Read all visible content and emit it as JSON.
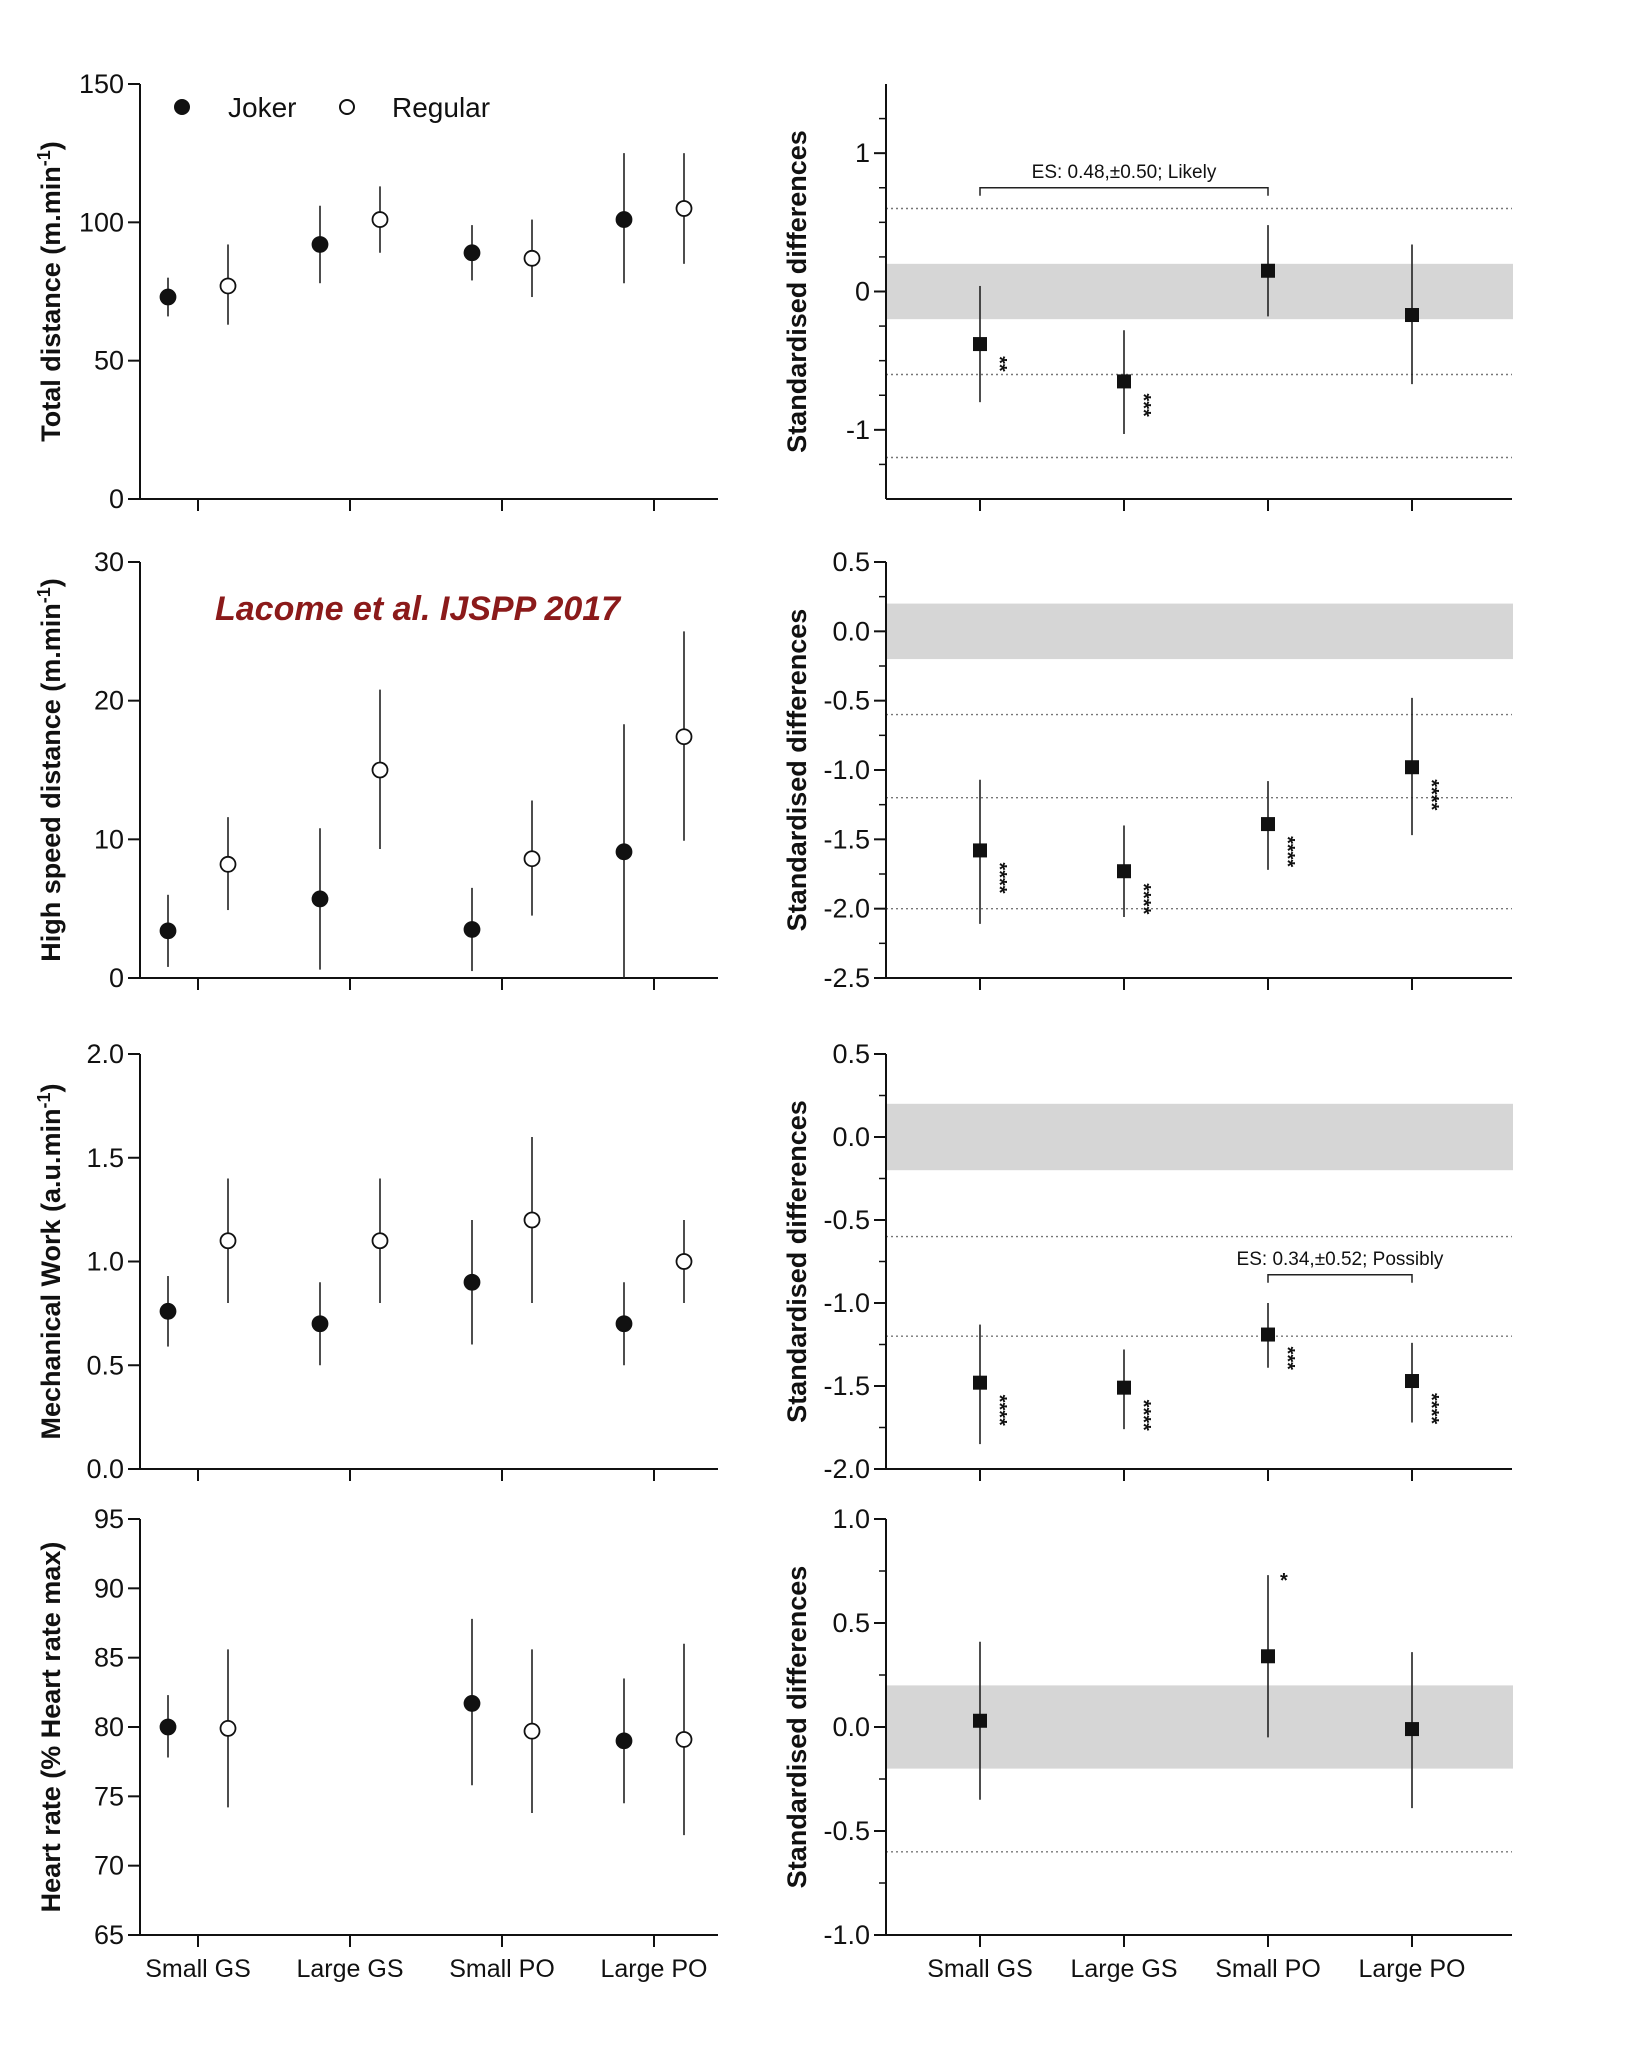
{
  "figure_note": "Lacome et al. IJSPP 2017",
  "legend": {
    "joker": "Joker",
    "regular": "Regular"
  },
  "colors": {
    "joker_marker": "#111111",
    "regular_marker": "#ffffff",
    "trivial_band": "#d6d6d6",
    "note_text": "#8b1a1a"
  },
  "categories": [
    "Small GS",
    "Large GS",
    "Small PO",
    "Large PO"
  ],
  "chart_data": [
    {
      "type": "scatter",
      "panel": "left",
      "ylabel_main": "Total distance (m.min",
      "ylabel_sup": "-1",
      "ylabel_end": ")",
      "ylim": [
        0,
        150
      ],
      "yticks": [
        0,
        50,
        100,
        150
      ],
      "yminor": [],
      "show_cat_labels": false,
      "series": [
        {
          "name": "Joker",
          "filled": true,
          "values": [
            73,
            92,
            89,
            101
          ],
          "low": [
            66,
            78,
            79,
            78
          ],
          "high": [
            80,
            106,
            99,
            125
          ]
        },
        {
          "name": "Regular",
          "filled": false,
          "values": [
            77,
            101,
            87,
            105
          ],
          "low": [
            63,
            89,
            73,
            85
          ],
          "high": [
            92,
            113,
            101,
            125
          ]
        }
      ]
    },
    {
      "type": "scatter",
      "panel": "right",
      "ylabel_main": "Standardised differences",
      "ylim": [
        -1.5,
        1.5
      ],
      "yticks": [
        -1,
        0,
        1
      ],
      "ytick_labels": [
        "-1",
        "0",
        "1"
      ],
      "yminor": [
        -1.25,
        -0.75,
        -0.5,
        -0.25,
        0.25,
        0.5,
        0.75,
        1.25
      ],
      "trivial_band": [
        -0.2,
        0.2
      ],
      "ref_lines": [
        0.6,
        -0.6,
        -1.2
      ],
      "show_cat_labels": false,
      "series": [
        {
          "values": [
            -0.38,
            -0.65,
            0.15,
            -0.17
          ],
          "low": [
            -0.8,
            -1.03,
            -0.18,
            -0.67
          ],
          "high": [
            0.04,
            -0.28,
            0.48,
            0.34
          ],
          "sig": [
            "**",
            "***",
            "",
            ""
          ]
        }
      ],
      "annotation": {
        "text": "ES: 0.48,±0.50; Likely",
        "from": 0,
        "to": 2,
        "y": 0.75
      }
    },
    {
      "type": "scatter",
      "panel": "left",
      "ylabel_main": "High speed distance (m.min",
      "ylabel_sup": "-1",
      "ylabel_end": ")",
      "ylim": [
        0,
        30
      ],
      "yticks": [
        0,
        10,
        20,
        30
      ],
      "yminor": [],
      "show_cat_labels": false,
      "series": [
        {
          "name": "Joker",
          "filled": true,
          "values": [
            3.4,
            5.7,
            3.5,
            9.1
          ],
          "low": [
            0.8,
            0.6,
            0.5,
            0
          ],
          "high": [
            6,
            10.8,
            6.5,
            18.3
          ]
        },
        {
          "name": "Regular",
          "filled": false,
          "values": [
            8.2,
            15,
            8.6,
            17.4
          ],
          "low": [
            4.9,
            9.3,
            4.5,
            9.9
          ],
          "high": [
            11.6,
            20.8,
            12.8,
            25
          ]
        }
      ]
    },
    {
      "type": "scatter",
      "panel": "right",
      "ylabel_main": "Standardised differences",
      "ylim": [
        -2.5,
        0.5
      ],
      "yticks": [
        -2.5,
        -2,
        -1.5,
        -1,
        -0.5,
        0,
        0.5
      ],
      "ytick_labels": [
        "-2.5",
        "-2.0",
        "-1.5",
        "-1.0",
        "-0.5",
        "0.0",
        "0.5"
      ],
      "yminor": [
        -2.25,
        -1.75,
        -1.25,
        -0.75,
        -0.25,
        0.25
      ],
      "trivial_band": [
        -0.2,
        0.2
      ],
      "ref_lines": [
        -0.6,
        -1.2,
        -2.0
      ],
      "show_cat_labels": false,
      "series": [
        {
          "values": [
            -1.58,
            -1.73,
            -1.39,
            -0.98
          ],
          "low": [
            -2.11,
            -2.06,
            -1.72,
            -1.47
          ],
          "high": [
            -1.07,
            -1.4,
            -1.08,
            -0.48
          ],
          "sig": [
            "****",
            "****",
            "****",
            "****"
          ]
        }
      ]
    },
    {
      "type": "scatter",
      "panel": "left",
      "ylabel_main": "Mechanical Work (a.u.min",
      "ylabel_sup": "-1",
      "ylabel_end": ")",
      "ylim": [
        0,
        2
      ],
      "yticks": [
        0,
        0.5,
        1,
        1.5,
        2
      ],
      "ytick_labels": [
        "0.0",
        "0.5",
        "1.0",
        "1.5",
        "2.0"
      ],
      "yminor": [],
      "show_cat_labels": false,
      "series": [
        {
          "name": "Joker",
          "filled": true,
          "values": [
            0.76,
            0.7,
            0.9,
            0.7
          ],
          "low": [
            0.59,
            0.5,
            0.6,
            0.5
          ],
          "high": [
            0.93,
            0.9,
            1.2,
            0.9
          ]
        },
        {
          "name": "Regular",
          "filled": false,
          "values": [
            1.1,
            1.1,
            1.2,
            1.0
          ],
          "low": [
            0.8,
            0.8,
            0.8,
            0.8
          ],
          "high": [
            1.4,
            1.4,
            1.6,
            1.2
          ]
        }
      ]
    },
    {
      "type": "scatter",
      "panel": "right",
      "ylabel_main": "Standardised differences",
      "ylim": [
        -2,
        0.5
      ],
      "yticks": [
        -2,
        -1.5,
        -1,
        -0.5,
        0,
        0.5
      ],
      "ytick_labels": [
        "-2.0",
        "-1.5",
        "-1.0",
        "-0.5",
        "0.0",
        "0.5"
      ],
      "yminor": [
        -1.75,
        -1.25,
        -0.75,
        -0.25,
        0.25
      ],
      "trivial_band": [
        -0.2,
        0.2
      ],
      "ref_lines": [
        -0.6,
        -1.2
      ],
      "show_cat_labels": false,
      "series": [
        {
          "values": [
            -1.48,
            -1.51,
            -1.19,
            -1.47
          ],
          "low": [
            -1.85,
            -1.76,
            -1.39,
            -1.72
          ],
          "high": [
            -1.13,
            -1.28,
            -1.0,
            -1.24
          ],
          "sig": [
            "****",
            "****",
            "***",
            "****"
          ]
        }
      ],
      "annotation": {
        "text": "ES: 0.34,±0.52; Possibly",
        "from": 2,
        "to": 3,
        "y": -0.83
      }
    },
    {
      "type": "scatter",
      "panel": "left",
      "ylabel_main": "Heart rate (% Heart rate max)",
      "ylim": [
        65,
        95
      ],
      "yticks": [
        65,
        70,
        75,
        80,
        85,
        90,
        95
      ],
      "yminor": [],
      "show_cat_labels": true,
      "series": [
        {
          "name": "Joker",
          "filled": true,
          "values": [
            80,
            null,
            81.7,
            79
          ],
          "low": [
            77.8,
            null,
            75.8,
            74.5
          ],
          "high": [
            82.3,
            null,
            87.8,
            83.5
          ]
        },
        {
          "name": "Regular",
          "filled": false,
          "values": [
            79.9,
            null,
            79.7,
            79.1
          ],
          "low": [
            74.2,
            null,
            73.8,
            72.2
          ],
          "high": [
            85.6,
            null,
            85.6,
            86
          ]
        }
      ]
    },
    {
      "type": "scatter",
      "panel": "right",
      "ylabel_main": "Standardised differences",
      "ylim": [
        -1,
        1
      ],
      "yticks": [
        -1,
        -0.5,
        0,
        0.5,
        1
      ],
      "ytick_labels": [
        "-1.0",
        "-0.5",
        "0.0",
        "0.5",
        "1.0"
      ],
      "yminor": [
        -0.75,
        -0.25,
        0.25,
        0.75
      ],
      "trivial_band": [
        -0.2,
        0.2
      ],
      "ref_lines": [
        -0.6
      ],
      "show_cat_labels": true,
      "series": [
        {
          "values": [
            0.03,
            null,
            0.34,
            -0.01
          ],
          "low": [
            -0.35,
            null,
            -0.05,
            -0.39
          ],
          "high": [
            0.41,
            null,
            0.73,
            0.36
          ],
          "sig": [
            "",
            "",
            "*",
            ""
          ]
        }
      ]
    }
  ]
}
